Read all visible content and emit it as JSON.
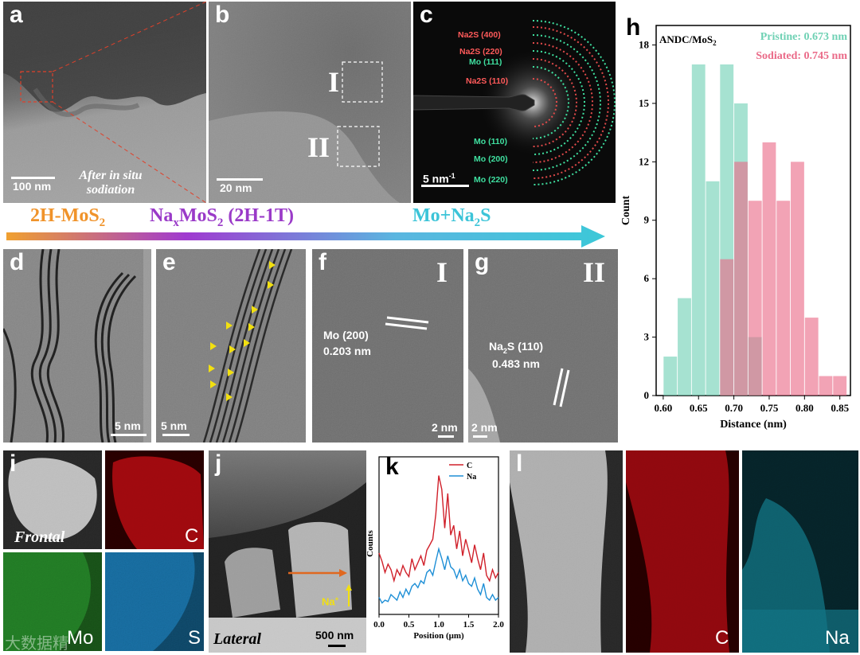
{
  "panels": {
    "a": {
      "label": "a",
      "scalebar": "100 nm",
      "caption": "After in situ sodiation"
    },
    "b": {
      "label": "b",
      "scalebar": "20 nm",
      "region1": "I",
      "region2": "II"
    },
    "c": {
      "label": "c",
      "scalebar": "5 nm",
      "scalebar_sup": "-1",
      "rings": [
        "Na2S (400)",
        "Na2S (220)",
        "Mo (111)",
        "Na2S (110)",
        "Mo (110)",
        "Mo (200)",
        "Mo (220)"
      ]
    },
    "d": {
      "label": "d",
      "scalebar": "5 nm"
    },
    "e": {
      "label": "e",
      "scalebar": "5 nm"
    },
    "f": {
      "label": "f",
      "region": "I",
      "plane": "Mo (200)",
      "spacing": "0.203 nm",
      "scalebar": "2 nm"
    },
    "g": {
      "label": "g",
      "region": "II",
      "plane": "Na2S (110)",
      "spacing": "0.483 nm",
      "scalebar": "2 nm"
    },
    "i": {
      "label": "i",
      "caption": "Frontal",
      "elements": [
        "C",
        "Mo",
        "S"
      ]
    },
    "j": {
      "label": "j",
      "caption": "Lateral",
      "scalebar": "500 nm",
      "ion": "Na+"
    },
    "k": {
      "label": "k"
    },
    "l": {
      "label": "l",
      "elements": [
        "C",
        "Na"
      ]
    }
  },
  "stages": {
    "s1": "2H-MoS2",
    "s2": "NaxMoS2 (2H-1T)",
    "s3": "Mo+Na2S"
  },
  "watermark": "大数据精",
  "colors": {
    "pristine": "#6fd1b4",
    "sodiated": "#ea6a88",
    "carbon": "#d0202a",
    "sodium": "#1e8fd6"
  },
  "chart_data": [
    {
      "type": "bar",
      "panel": "h",
      "title": "ANDC/MoS2",
      "xlabel": "Distance (nm)",
      "ylabel": "Count",
      "xlim": [
        0.59,
        0.865
      ],
      "ylim": [
        0,
        19
      ],
      "xticks": [
        "0.60",
        "0.65",
        "0.70",
        "0.75",
        "0.80",
        "0.85"
      ],
      "yticks": [
        "0",
        "3",
        "6",
        "9",
        "12",
        "15",
        "18"
      ],
      "series": [
        {
          "name": "Pristine: 0.673 nm",
          "color": "#6fd1b4",
          "x": [
            0.61,
            0.63,
            0.65,
            0.67,
            0.69,
            0.71,
            0.73
          ],
          "values": [
            2,
            5,
            17,
            11,
            17,
            15,
            3
          ]
        },
        {
          "name": "Sodiated: 0.745 nm",
          "color": "#ea6a88",
          "x": [
            0.69,
            0.71,
            0.73,
            0.75,
            0.77,
            0.79,
            0.81,
            0.83,
            0.85
          ],
          "values": [
            7,
            12,
            10,
            13,
            10,
            12,
            4,
            1,
            1
          ]
        }
      ]
    },
    {
      "type": "line",
      "panel": "k",
      "xlabel": "Position (μm)",
      "ylabel": "Counts",
      "xlim": [
        0,
        2.0
      ],
      "xticks": [
        "0.0",
        "0.5",
        "1.0",
        "1.5",
        "2.0"
      ],
      "series": [
        {
          "name": "C",
          "color": "#d0202a",
          "values": [
            0.42,
            0.36,
            0.28,
            0.34,
            0.3,
            0.22,
            0.3,
            0.26,
            0.33,
            0.28,
            0.25,
            0.38,
            0.3,
            0.35,
            0.4,
            0.33,
            0.44,
            0.48,
            0.52,
            0.7,
            0.98,
            0.88,
            0.6,
            0.85,
            0.55,
            0.62,
            0.45,
            0.58,
            0.4,
            0.52,
            0.44,
            0.35,
            0.48,
            0.38,
            0.3,
            0.42,
            0.26,
            0.22,
            0.3,
            0.24,
            0.28
          ]
        },
        {
          "name": "Na",
          "color": "#1e8fd6",
          "values": [
            0.1,
            0.06,
            0.08,
            0.07,
            0.12,
            0.1,
            0.08,
            0.14,
            0.1,
            0.16,
            0.12,
            0.18,
            0.2,
            0.17,
            0.22,
            0.2,
            0.28,
            0.3,
            0.26,
            0.36,
            0.45,
            0.38,
            0.3,
            0.4,
            0.32,
            0.3,
            0.24,
            0.3,
            0.22,
            0.26,
            0.2,
            0.18,
            0.24,
            0.16,
            0.12,
            0.2,
            0.1,
            0.08,
            0.12,
            0.08,
            0.1
          ]
        }
      ]
    }
  ]
}
